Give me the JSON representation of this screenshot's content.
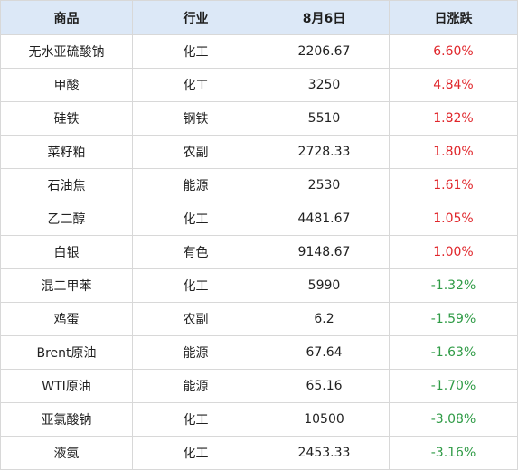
{
  "table": {
    "headers": [
      "商品",
      "行业",
      "8月6日",
      "日涨跌"
    ],
    "rows": [
      {
        "name": "无水亚硫酸钠",
        "industry": "化工",
        "price": "2206.67",
        "change": "6.60%",
        "direction": "up"
      },
      {
        "name": "甲酸",
        "industry": "化工",
        "price": "3250",
        "change": "4.84%",
        "direction": "up"
      },
      {
        "name": "硅铁",
        "industry": "钢铁",
        "price": "5510",
        "change": "1.82%",
        "direction": "up"
      },
      {
        "name": "菜籽粕",
        "industry": "农副",
        "price": "2728.33",
        "change": "1.80%",
        "direction": "up"
      },
      {
        "name": "石油焦",
        "industry": "能源",
        "price": "2530",
        "change": "1.61%",
        "direction": "up"
      },
      {
        "name": "乙二醇",
        "industry": "化工",
        "price": "4481.67",
        "change": "1.05%",
        "direction": "up"
      },
      {
        "name": "白银",
        "industry": "有色",
        "price": "9148.67",
        "change": "1.00%",
        "direction": "up"
      },
      {
        "name": "混二甲苯",
        "industry": "化工",
        "price": "5990",
        "change": "-1.32%",
        "direction": "down"
      },
      {
        "name": "鸡蛋",
        "industry": "农副",
        "price": "6.2",
        "change": "-1.59%",
        "direction": "down"
      },
      {
        "name": "Brent原油",
        "industry": "能源",
        "price": "67.64",
        "change": "-1.63%",
        "direction": "down"
      },
      {
        "name": "WTI原油",
        "industry": "能源",
        "price": "65.16",
        "change": "-1.70%",
        "direction": "down"
      },
      {
        "name": "亚氯酸钠",
        "industry": "化工",
        "price": "10500",
        "change": "-3.08%",
        "direction": "down"
      },
      {
        "name": "液氨",
        "industry": "化工",
        "price": "2453.33",
        "change": "-3.16%",
        "direction": "down"
      }
    ]
  },
  "colors": {
    "header_bg": "#dce8f7",
    "up": "#e0262b",
    "down": "#2f9b46",
    "border": "#d8d8d8"
  }
}
